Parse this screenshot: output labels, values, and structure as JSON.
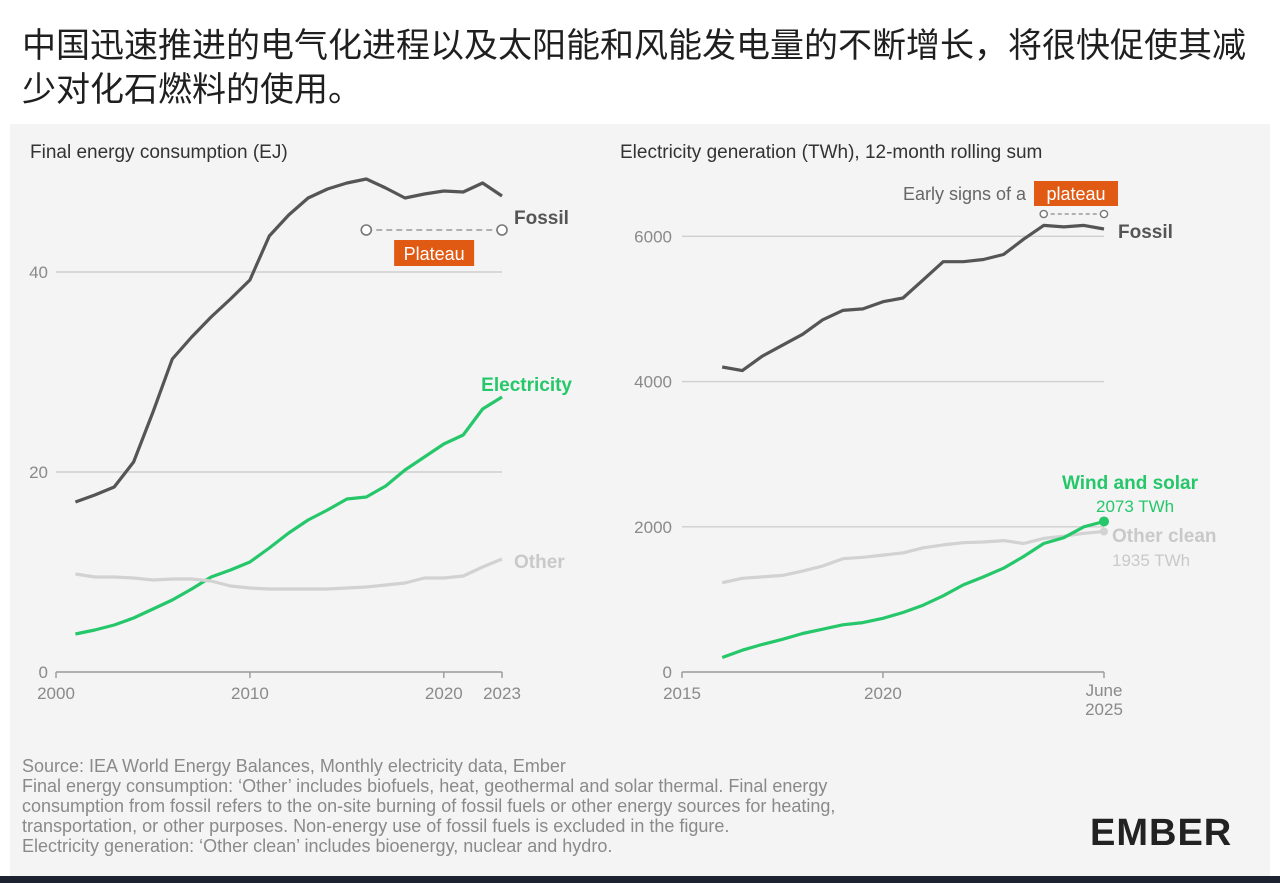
{
  "headline": "中国迅速推进的电气化进程以及太阳能和风能发电量的不断增长，将很快促使其减少对化石燃料的使用。",
  "colors": {
    "fossil": "#555555",
    "electricity": "#26c76b",
    "other": "#d2d2d2",
    "accent": "#e05a14",
    "grid": "#cfcfcf"
  },
  "chart_data": [
    {
      "type": "line",
      "title": "Final energy consumption (EJ)",
      "xlim": [
        2000,
        2023
      ],
      "ylim": [
        0,
        50
      ],
      "yticks": [
        "0",
        "20",
        "40"
      ],
      "xticks": [
        "2000",
        "2010",
        "2020",
        "2023"
      ],
      "grid": true,
      "x": [
        2001,
        2002,
        2003,
        2004,
        2005,
        2006,
        2007,
        2008,
        2009,
        2010,
        2011,
        2012,
        2013,
        2014,
        2015,
        2016,
        2017,
        2018,
        2019,
        2020,
        2021,
        2022,
        2023
      ],
      "series": [
        {
          "name": "Fossil",
          "values": [
            17,
            17.7,
            18.5,
            21,
            26,
            31.3,
            33.5,
            35.5,
            37.3,
            39.2,
            43.6,
            45.7,
            47.4,
            48.3,
            48.9,
            49.3,
            48.4,
            47.4,
            47.8,
            48.1,
            48,
            48.9,
            47.6
          ]
        },
        {
          "name": "Electricity",
          "values": [
            3.8,
            4.2,
            4.7,
            5.4,
            6.3,
            7.2,
            8.3,
            9.5,
            10.2,
            11,
            12.4,
            13.9,
            15.2,
            16.2,
            17.3,
            17.5,
            18.6,
            20.2,
            21.5,
            22.8,
            23.7,
            26.3,
            27.5
          ]
        },
        {
          "name": "Other",
          "values": [
            9.8,
            9.5,
            9.5,
            9.4,
            9.2,
            9.3,
            9.3,
            9.1,
            8.6,
            8.4,
            8.3,
            8.3,
            8.3,
            8.3,
            8.4,
            8.5,
            8.7,
            8.9,
            9.4,
            9.4,
            9.6,
            10.5,
            11.3
          ]
        }
      ],
      "annotation": "Plateau",
      "labels": {
        "fossil": "Fossil",
        "electricity": "Electricity",
        "other": "Other"
      }
    },
    {
      "type": "line",
      "title": "Electricity generation (TWh), 12-month rolling sum",
      "xlim": [
        2015,
        2025.5
      ],
      "ylim": [
        0,
        6500
      ],
      "yticks": [
        "0",
        "2000",
        "4000",
        "6000"
      ],
      "xticks": [
        "2015",
        "2020"
      ],
      "xtick_end": [
        "June",
        "2025"
      ],
      "grid": true,
      "x": [
        2016,
        2016.5,
        2017,
        2017.5,
        2018,
        2018.5,
        2019,
        2019.5,
        2020,
        2020.5,
        2021,
        2021.5,
        2022,
        2022.5,
        2023,
        2023.5,
        2024,
        2024.5,
        2025,
        2025.5
      ],
      "series": [
        {
          "name": "Fossil",
          "values": [
            4200,
            4150,
            4350,
            4500,
            4650,
            4850,
            4980,
            5000,
            5100,
            5150,
            5400,
            5650,
            5650,
            5680,
            5750,
            5960,
            6150,
            6130,
            6150,
            6100
          ]
        },
        {
          "name": "Wind and solar",
          "values": [
            200,
            300,
            380,
            450,
            530,
            590,
            650,
            680,
            740,
            820,
            920,
            1050,
            1200,
            1310,
            1430,
            1590,
            1770,
            1850,
            2000,
            2073
          ]
        },
        {
          "name": "Other clean",
          "values": [
            1230,
            1290,
            1310,
            1330,
            1390,
            1460,
            1560,
            1580,
            1610,
            1640,
            1710,
            1750,
            1780,
            1790,
            1810,
            1770,
            1840,
            1870,
            1910,
            1935
          ]
        }
      ],
      "annotation_prefix": "Early signs of a",
      "annotation": "plateau",
      "labels": {
        "fossil": "Fossil",
        "wind_solar": "Wind and solar",
        "wind_solar_value": "2073 TWh",
        "other_clean": "Other clean",
        "other_clean_value": "1935 TWh"
      }
    }
  ],
  "notes": [
    "Source: IEA World Energy Balances, Monthly electricity data, Ember",
    "Final energy consumption: ‘Other’ includes biofuels, heat, geothermal and solar thermal. Final energy",
    "consumption from fossil refers to the on-site burning of fossil fuels or other energy sources for heating,",
    "transportation, or other purposes. Non-energy use of fossil fuels is excluded in the figure.",
    "Electricity generation: ‘Other clean’ includes bioenergy, nuclear and hydro."
  ],
  "logo": "EMBER"
}
